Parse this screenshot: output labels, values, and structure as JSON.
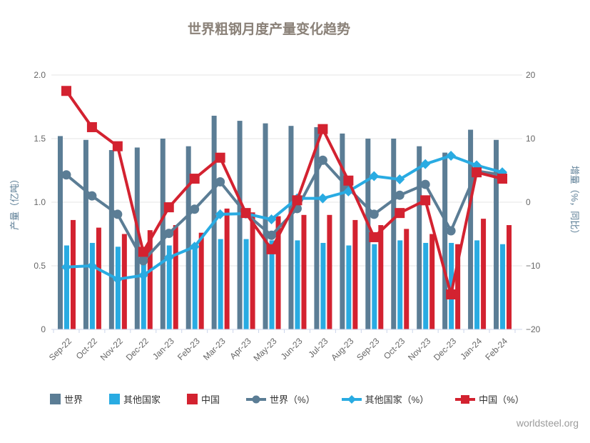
{
  "title": "世界粗钢月度产量变化趋势",
  "watermark": "worldsteel.org",
  "colors": {
    "world": "#5b7d95",
    "others": "#29abe2",
    "china": "#d32230",
    "grid": "#e6e6e6",
    "axis_line": "#ccd6eb",
    "tick_text": "#666666",
    "axis_title_text": "#5b7d95",
    "title_text": "#8a8178",
    "legend_text": "#333333",
    "watermark_text": "#9b9b9b"
  },
  "chart_data": {
    "type": "bar+line combo (dual axis)",
    "title": "世界粗钢月度产量变化趋势",
    "categories": [
      "Sep-22",
      "Oct-22",
      "Nov-22",
      "Dec-22",
      "Jan-23",
      "Feb-23",
      "Mar-23",
      "Apr-23",
      "May-23",
      "Jun-23",
      "Jul-23",
      "Aug-23",
      "Sep-23",
      "Oct-23",
      "Nov-23",
      "Dec-23",
      "Jan-24",
      "Feb-24"
    ],
    "left_axis": {
      "title": "产量（亿吨）",
      "range": [
        0,
        2.0
      ],
      "tick_labels_top_to_bottom": [
        "2.0",
        "1.5",
        "1.0",
        "0.5",
        "0"
      ]
    },
    "right_axis": {
      "title": "增量（%，同比）",
      "range": [
        -20,
        20
      ],
      "tick_labels_top_to_bottom": [
        "20",
        "10",
        "0",
        "−10",
        "−20"
      ]
    },
    "bar_series": [
      {
        "key": "world",
        "name": "世界",
        "color": "#5b7d95",
        "values": [
          1.52,
          1.49,
          1.41,
          1.43,
          1.5,
          1.44,
          1.68,
          1.64,
          1.62,
          1.6,
          1.59,
          1.54,
          1.5,
          1.5,
          1.44,
          1.39,
          1.57,
          1.49
        ]
      },
      {
        "key": "others",
        "name": "其他国家",
        "color": "#29abe2",
        "values": [
          0.66,
          0.68,
          0.65,
          0.63,
          0.66,
          0.64,
          0.71,
          0.71,
          0.7,
          0.7,
          0.68,
          0.66,
          0.67,
          0.7,
          0.68,
          0.68,
          0.7,
          0.67
        ]
      },
      {
        "key": "china",
        "name": "中国",
        "color": "#d32230",
        "values": [
          0.86,
          0.8,
          0.75,
          0.78,
          0.82,
          0.76,
          0.95,
          0.92,
          0.89,
          0.9,
          0.9,
          0.86,
          0.82,
          0.79,
          0.75,
          0.67,
          0.87,
          0.82
        ]
      }
    ],
    "line_series": [
      {
        "key": "world-pct",
        "name": "世界（%）",
        "color": "#5b7d95",
        "marker": "circle",
        "values": [
          4.3,
          1.0,
          -1.9,
          -9.2,
          -4.9,
          -1.1,
          3.2,
          -1.8,
          -5.2,
          -1.0,
          6.6,
          2.2,
          -1.9,
          1.1,
          2.8,
          -4.5,
          4.9,
          4.3
        ]
      },
      {
        "key": "others-pct",
        "name": "其他国家（%）",
        "color": "#29abe2",
        "marker": "diamond",
        "values": [
          -10.2,
          -10.0,
          -12.1,
          -11.5,
          -8.7,
          -7.0,
          -1.9,
          -1.8,
          -2.7,
          0.6,
          0.6,
          1.7,
          4.1,
          3.6,
          6.0,
          7.3,
          5.8,
          4.7
        ]
      },
      {
        "key": "china-pct",
        "name": "中国（%）",
        "color": "#d32230",
        "marker": "square",
        "values": [
          17.5,
          11.8,
          8.8,
          -7.8,
          -0.8,
          3.7,
          7.0,
          -1.7,
          -7.4,
          0.3,
          11.5,
          3.4,
          -5.5,
          -1.7,
          0.3,
          -14.5,
          4.7,
          3.7
        ]
      }
    ],
    "legend_position": "bottom",
    "grid": "horizontal only"
  }
}
